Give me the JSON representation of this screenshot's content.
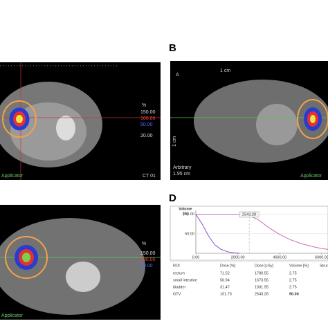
{
  "panel_a": {
    "isodose_unit": "%",
    "isodose_levels": [
      "150.00",
      "100.00",
      "50.00",
      "20.00"
    ],
    "applicator": "Applicator",
    "series": "CT 01"
  },
  "panel_b": {
    "label": "B",
    "orientation": "A",
    "scale": "1 cm",
    "vertical_scale": "1 cm",
    "projection": "Arbitrary",
    "thickness": "1.95 cm",
    "applicator": "Applicator"
  },
  "panel_c": {
    "isodose_unit": "%",
    "isodose_levels": [
      "150.00",
      "100.00",
      "50.00"
    ],
    "applicator": "Applicator"
  },
  "panel_d": {
    "label": "D",
    "dvh": {
      "y_label": "Volume",
      "y_unit": "[%]",
      "xlim": [
        0,
        6300
      ],
      "ylim": [
        0,
        110
      ],
      "xticks": [
        {
          "value": 0,
          "label": "0.00"
        },
        {
          "value": 2000,
          "label": "2000.00"
        },
        {
          "value": 4000,
          "label": "4000.00"
        },
        {
          "value": 6000,
          "label": "6000.00"
        }
      ],
      "yticks": [
        {
          "value": 50,
          "label": "50.00"
        },
        {
          "value": 100,
          "label": "100.00"
        }
      ],
      "marker": {
        "value": 2543.28,
        "label": "2543.28"
      },
      "series": [
        {
          "color": "#c86cb4",
          "x": [
            0,
            1500,
            2000,
            2500,
            3000,
            3500,
            4000,
            4500,
            5000,
            5500,
            6000,
            6300
          ],
          "values": [
            100,
            100,
            100,
            98,
            85,
            65,
            48,
            35,
            25,
            18,
            12,
            10
          ]
        },
        {
          "color": "#8a50c8",
          "x": [
            0,
            300,
            600,
            900,
            1200,
            1500,
            1800,
            2100
          ],
          "values": [
            100,
            75,
            45,
            22,
            10,
            4,
            1,
            0
          ]
        }
      ]
    },
    "table": {
      "header": [
        "ROI",
        "Dose [%]",
        "Dose [cGy]",
        "Volume [%]",
        "Struct"
      ],
      "rows": [
        [
          "rectum",
          "71.52",
          "1780.55",
          "2.75"
        ],
        [
          "small intestine",
          "56.94",
          "1673.55",
          "2.75"
        ],
        [
          "bladder",
          "31.47",
          "1001.95",
          "2.75"
        ],
        [
          "GTV",
          "101.73",
          "2543.28",
          "90.00"
        ]
      ]
    }
  }
}
